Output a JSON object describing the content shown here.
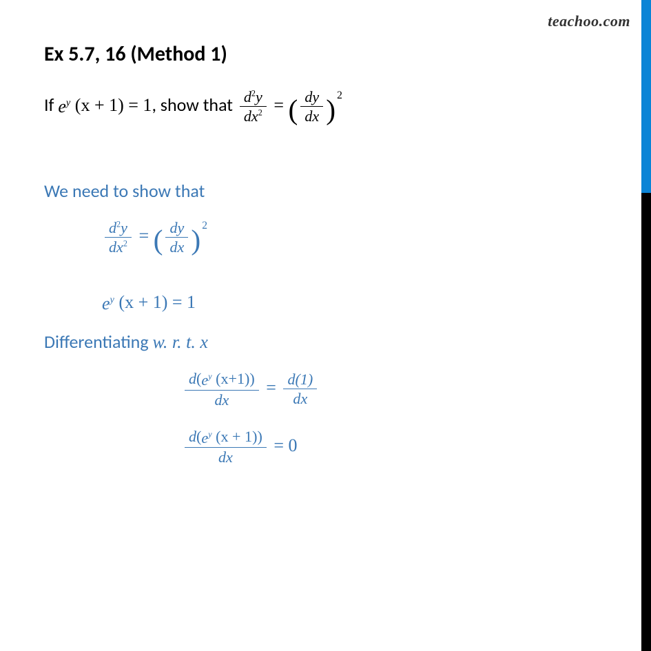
{
  "watermark": "teachoo.com",
  "heading": "Ex 5.7, 16 (Method 1)",
  "prompt_pre": "If ",
  "prompt_mid": ", show that ",
  "show_label": "We need to show that",
  "diff_label_pre": "Differentiating  ",
  "wrt": "w. r. t. x",
  "colors": {
    "blue": "#3b78b5",
    "stripe_blue": "#0a84d6",
    "black": "#000000",
    "text": "#333333",
    "bg": "#ffffff"
  },
  "math": {
    "ey": "e",
    "y": "y",
    "xp1_open": " (x + 1) = 1",
    "eq": " = ",
    "d2y": "d",
    "two": "2",
    "yv": "y",
    "dx2": "dx",
    "dy": "dy",
    "dx": "dx",
    "given": " (x + 1) = 1",
    "d_open": "d",
    "big_open": "(",
    "big_close": ")",
    "ey_xp1": " (x+1)",
    "ey_xp1s": " (x + 1)",
    "d1": "d(1)",
    "zero": "0"
  },
  "fonts": {
    "heading_pt": 30,
    "body_pt": 26,
    "watermark_pt": 22
  }
}
